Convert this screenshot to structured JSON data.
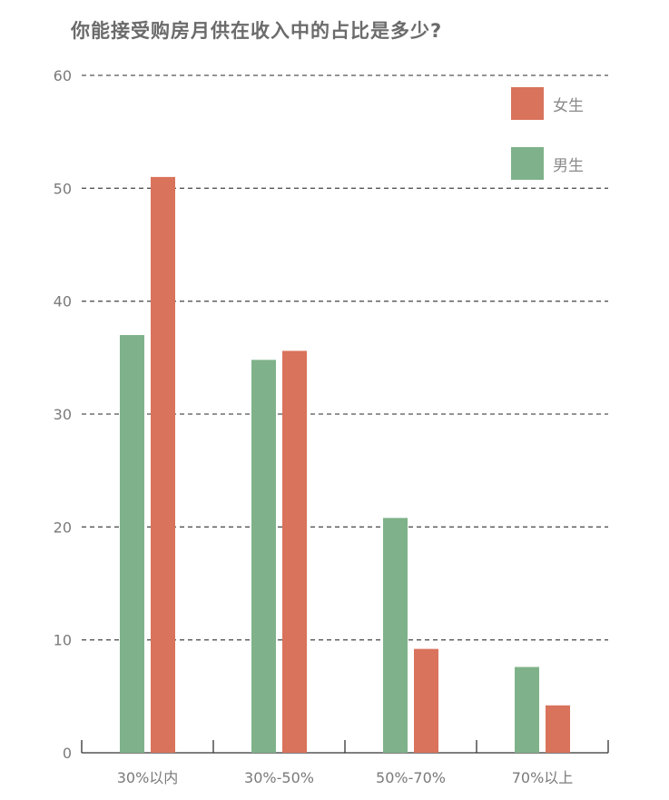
{
  "chart_data": {
    "type": "bar",
    "title": "你能接受购房月供在收入中的占比是多少?",
    "categories": [
      "30%以内",
      "30%-50%",
      "50%-70%",
      "70%以上"
    ],
    "series": [
      {
        "name": "男生",
        "color": "#7fb28a",
        "values": [
          37,
          34.8,
          20.8,
          7.6
        ]
      },
      {
        "name": "女生",
        "color": "#d9735c",
        "values": [
          51,
          35.6,
          9.2,
          4.2
        ]
      }
    ],
    "ylim": [
      0,
      60
    ],
    "yticks": [
      0,
      10,
      20,
      30,
      40,
      50,
      60
    ],
    "grid": true,
    "grid_style": "dashed",
    "legend": {
      "placement": "top-right",
      "order": [
        "女生",
        "男生"
      ]
    },
    "xlabel": "",
    "ylabel": ""
  }
}
